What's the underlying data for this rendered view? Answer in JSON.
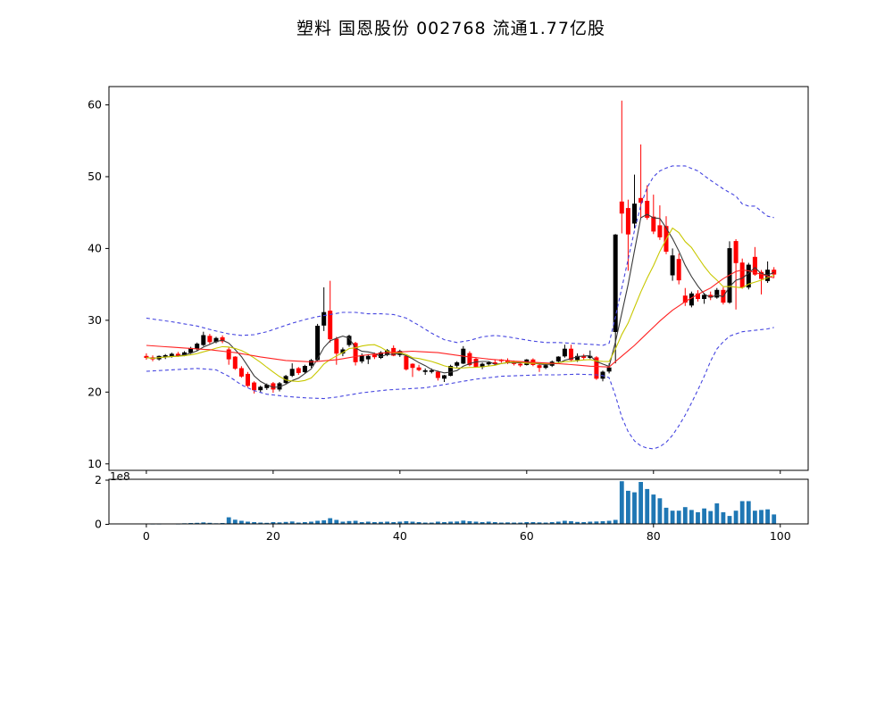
{
  "header": {
    "title": "塑料 国恩股份 002768 流通1.77亿股"
  },
  "chart_data": {
    "type": "candlestick",
    "title": "塑料 国恩股份 002768 流通1.77亿股",
    "panels": [
      "price",
      "volume"
    ],
    "x_ticks": [
      0,
      20,
      40,
      60,
      80,
      100
    ],
    "xlim": [
      -5.9,
      104.4
    ],
    "price_axis": {
      "ticks": [
        10,
        20,
        30,
        40,
        50,
        60
      ],
      "ylim": [
        9.1,
        62.55
      ]
    },
    "volume_axis": {
      "ticks": [
        0,
        2
      ],
      "offset_label": "1e8",
      "ylim_1e8": [
        0,
        2.0
      ]
    },
    "colors": {
      "up_candle": "#000000",
      "down_candle": "#ff0000",
      "ma_fast": "#3a3a3a",
      "ma_med": "#c8c800",
      "ma_slow": "#ff2222",
      "bollinger": "#4545e0",
      "volume_bar": "#1f77b4",
      "axis": "#000000",
      "background": "#ffffff"
    },
    "ohlc": [
      [
        25.0,
        25.4,
        24.5,
        24.8
      ],
      [
        24.8,
        25.1,
        24.3,
        24.6
      ],
      [
        24.6,
        25.1,
        24.4,
        25.0
      ],
      [
        24.9,
        25.3,
        24.6,
        25.1
      ],
      [
        25.0,
        25.5,
        24.8,
        25.3
      ],
      [
        25.3,
        25.6,
        24.9,
        25.1
      ],
      [
        25.1,
        25.7,
        25.0,
        25.5
      ],
      [
        25.5,
        26.3,
        25.3,
        26.1
      ],
      [
        26.0,
        26.9,
        25.8,
        26.7
      ],
      [
        26.6,
        28.4,
        26.4,
        27.9
      ],
      [
        27.8,
        28.1,
        26.7,
        27.0
      ],
      [
        27.0,
        27.7,
        26.8,
        27.5
      ],
      [
        27.6,
        27.9,
        26.8,
        27.1
      ],
      [
        25.9,
        26.2,
        23.8,
        24.6
      ],
      [
        24.9,
        25.0,
        23.1,
        23.3
      ],
      [
        23.3,
        23.6,
        22.0,
        22.2
      ],
      [
        22.5,
        22.8,
        20.7,
        20.9
      ],
      [
        21.3,
        21.5,
        19.8,
        20.3
      ],
      [
        20.3,
        20.9,
        19.9,
        20.7
      ],
      [
        20.6,
        21.2,
        20.3,
        21.0
      ],
      [
        21.2,
        21.4,
        19.9,
        20.4
      ],
      [
        20.4,
        21.4,
        20.1,
        21.2
      ],
      [
        21.3,
        22.4,
        21.1,
        22.2
      ],
      [
        22.3,
        24.0,
        22.1,
        23.2
      ],
      [
        23.3,
        23.5,
        22.4,
        22.7
      ],
      [
        22.8,
        23.8,
        22.6,
        23.6
      ],
      [
        23.7,
        24.6,
        23.4,
        24.4
      ],
      [
        24.5,
        29.5,
        24.3,
        29.2
      ],
      [
        29.3,
        34.6,
        28.5,
        31.1
      ],
      [
        31.3,
        35.5,
        26.9,
        27.4
      ],
      [
        27.4,
        27.7,
        23.8,
        25.4
      ],
      [
        25.4,
        26.2,
        25.0,
        25.9
      ],
      [
        26.6,
        28.0,
        26.3,
        27.8
      ],
      [
        26.8,
        27.0,
        23.7,
        24.2
      ],
      [
        24.3,
        25.4,
        24.0,
        25.1
      ],
      [
        24.6,
        25.3,
        23.9,
        25.0
      ],
      [
        25.2,
        25.5,
        24.6,
        24.9
      ],
      [
        24.8,
        25.7,
        24.6,
        25.5
      ],
      [
        25.2,
        26.0,
        25.0,
        25.8
      ],
      [
        26.1,
        26.5,
        25.0,
        25.1
      ],
      [
        25.2,
        25.9,
        24.9,
        25.7
      ],
      [
        25.0,
        25.2,
        23.0,
        23.2
      ],
      [
        23.9,
        24.0,
        22.1,
        23.4
      ],
      [
        23.4,
        23.8,
        22.9,
        23.1
      ],
      [
        22.9,
        23.3,
        22.4,
        23.0
      ],
      [
        23.0,
        23.3,
        22.6,
        23.0
      ],
      [
        22.8,
        23.0,
        21.6,
        22.0
      ],
      [
        21.9,
        22.4,
        21.4,
        22.3
      ],
      [
        22.3,
        23.8,
        22.2,
        23.6
      ],
      [
        23.7,
        24.3,
        23.4,
        24.1
      ],
      [
        24.0,
        26.4,
        23.9,
        26.0
      ],
      [
        25.4,
        25.7,
        23.6,
        23.8
      ],
      [
        24.6,
        24.8,
        23.4,
        23.5
      ],
      [
        23.5,
        24.1,
        23.2,
        23.9
      ],
      [
        23.9,
        24.3,
        23.6,
        24.1
      ],
      [
        24.1,
        24.5,
        23.8,
        24.0
      ],
      [
        24.5,
        24.6,
        24.1,
        24.4
      ],
      [
        24.4,
        24.7,
        23.9,
        24.1
      ],
      [
        24.1,
        24.4,
        23.7,
        24.0
      ],
      [
        23.9,
        24.2,
        23.5,
        23.8
      ],
      [
        23.8,
        24.6,
        23.7,
        24.5
      ],
      [
        24.5,
        24.7,
        23.6,
        23.8
      ],
      [
        23.7,
        23.9,
        22.8,
        23.4
      ],
      [
        23.4,
        23.9,
        23.2,
        23.7
      ],
      [
        23.7,
        24.4,
        23.5,
        24.2
      ],
      [
        24.3,
        25.0,
        24.1,
        24.9
      ],
      [
        25.0,
        26.6,
        24.8,
        26.0
      ],
      [
        26.0,
        26.6,
        24.3,
        24.5
      ],
      [
        24.5,
        25.4,
        24.2,
        25.0
      ],
      [
        25.0,
        25.3,
        24.5,
        24.8
      ],
      [
        24.8,
        25.8,
        24.6,
        25.0
      ],
      [
        24.8,
        25.0,
        21.7,
        21.9
      ],
      [
        21.9,
        23.0,
        21.5,
        22.8
      ],
      [
        22.9,
        24.0,
        22.6,
        23.4
      ],
      [
        28.4,
        42.0,
        24.0,
        41.9
      ],
      [
        46.5,
        60.6,
        42.1,
        44.9
      ],
      [
        45.6,
        46.8,
        36.9,
        42.0
      ],
      [
        43.5,
        50.3,
        42.8,
        46.2
      ],
      [
        47.0,
        54.5,
        44.3,
        46.4
      ],
      [
        46.6,
        48.8,
        44.0,
        44.3
      ],
      [
        44.4,
        47.5,
        42.0,
        42.4
      ],
      [
        43.2,
        46.0,
        41.2,
        41.6
      ],
      [
        43.1,
        44.5,
        39.2,
        39.6
      ],
      [
        36.3,
        40.0,
        35.5,
        39.0
      ],
      [
        38.5,
        39.3,
        35.0,
        35.6
      ],
      [
        33.4,
        34.5,
        32.0,
        32.5
      ],
      [
        32.1,
        34.0,
        31.8,
        33.7
      ],
      [
        33.7,
        34.2,
        32.6,
        33.0
      ],
      [
        33.0,
        33.8,
        32.3,
        33.5
      ],
      [
        33.5,
        34.0,
        32.8,
        33.2
      ],
      [
        33.2,
        34.5,
        33.0,
        34.2
      ],
      [
        34.2,
        34.6,
        32.2,
        32.5
      ],
      [
        32.5,
        41.0,
        32.3,
        40.0
      ],
      [
        41.0,
        41.3,
        31.5,
        38.0
      ],
      [
        38.0,
        38.6,
        34.4,
        34.6
      ],
      [
        34.6,
        38.0,
        34.3,
        37.7
      ],
      [
        38.8,
        40.2,
        36.2,
        36.4
      ],
      [
        36.7,
        37.0,
        33.6,
        35.8
      ],
      [
        35.5,
        38.2,
        35.2,
        37.0
      ],
      [
        37.0,
        37.4,
        35.9,
        36.4
      ]
    ],
    "volumes_1e8": [
      0.04,
      0.03,
      0.03,
      0.04,
      0.04,
      0.03,
      0.05,
      0.06,
      0.07,
      0.09,
      0.07,
      0.05,
      0.06,
      0.32,
      0.21,
      0.16,
      0.12,
      0.1,
      0.08,
      0.07,
      0.1,
      0.09,
      0.11,
      0.13,
      0.08,
      0.1,
      0.12,
      0.16,
      0.18,
      0.28,
      0.2,
      0.12,
      0.15,
      0.16,
      0.1,
      0.12,
      0.1,
      0.11,
      0.12,
      0.1,
      0.12,
      0.14,
      0.12,
      0.1,
      0.08,
      0.08,
      0.12,
      0.1,
      0.12,
      0.13,
      0.17,
      0.14,
      0.12,
      0.1,
      0.12,
      0.1,
      0.08,
      0.09,
      0.08,
      0.08,
      0.1,
      0.1,
      0.09,
      0.08,
      0.1,
      0.12,
      0.16,
      0.14,
      0.11,
      0.1,
      0.12,
      0.13,
      0.14,
      0.16,
      0.2,
      1.95,
      1.52,
      1.45,
      1.92,
      1.6,
      1.35,
      1.18,
      0.75,
      0.62,
      0.62,
      0.78,
      0.65,
      0.55,
      0.72,
      0.6,
      0.95,
      0.55,
      0.38,
      0.62,
      1.05,
      1.05,
      0.62,
      0.65,
      0.68,
      0.45
    ],
    "overlays": {
      "ma_fast_window": 5,
      "ma_med_window": 10,
      "ma_slow_keypoints": [
        [
          0,
          26.5
        ],
        [
          5,
          26.2
        ],
        [
          10,
          25.9
        ],
        [
          14,
          25.5
        ],
        [
          18,
          24.9
        ],
        [
          22,
          24.4
        ],
        [
          26,
          24.2
        ],
        [
          30,
          24.5
        ],
        [
          34,
          25.1
        ],
        [
          38,
          25.5
        ],
        [
          42,
          25.7
        ],
        [
          46,
          25.5
        ],
        [
          50,
          25.0
        ],
        [
          54,
          24.6
        ],
        [
          58,
          24.3
        ],
        [
          62,
          24.1
        ],
        [
          66,
          23.9
        ],
        [
          70,
          23.6
        ],
        [
          73,
          23.5
        ],
        [
          75,
          25.0
        ],
        [
          77,
          26.5
        ],
        [
          79,
          28.2
        ],
        [
          81,
          29.9
        ],
        [
          83,
          31.4
        ],
        [
          85,
          32.6
        ],
        [
          87,
          33.6
        ],
        [
          89,
          34.5
        ],
        [
          91,
          35.8
        ],
        [
          93,
          36.8
        ],
        [
          94,
          37.0
        ],
        [
          95,
          36.9
        ],
        [
          97,
          36.4
        ],
        [
          99,
          35.9
        ]
      ],
      "boll_upper_keypoints": [
        [
          0,
          30.3
        ],
        [
          4,
          29.8
        ],
        [
          8,
          29.2
        ],
        [
          11,
          28.5
        ],
        [
          13,
          28.1
        ],
        [
          15,
          27.9
        ],
        [
          17,
          28.0
        ],
        [
          19,
          28.4
        ],
        [
          21,
          29.0
        ],
        [
          23,
          29.6
        ],
        [
          25,
          30.1
        ],
        [
          27,
          30.5
        ],
        [
          29,
          30.8
        ],
        [
          31,
          31.1
        ],
        [
          33,
          31.1
        ],
        [
          35,
          30.9
        ],
        [
          37,
          30.9
        ],
        [
          39,
          30.8
        ],
        [
          41,
          30.3
        ],
        [
          43,
          29.3
        ],
        [
          45,
          28.2
        ],
        [
          47,
          27.3
        ],
        [
          49,
          26.9
        ],
        [
          51,
          27.2
        ],
        [
          53,
          27.7
        ],
        [
          55,
          27.9
        ],
        [
          57,
          27.7
        ],
        [
          59,
          27.4
        ],
        [
          61,
          27.1
        ],
        [
          63,
          26.9
        ],
        [
          65,
          26.9
        ],
        [
          67,
          26.8
        ],
        [
          69,
          26.7
        ],
        [
          71,
          26.6
        ],
        [
          72,
          26.5
        ],
        [
          73,
          26.8
        ],
        [
          74,
          30.5
        ],
        [
          75,
          34.5
        ],
        [
          76,
          38.5
        ],
        [
          77,
          42.5
        ],
        [
          78,
          46.0
        ],
        [
          79,
          48.5
        ],
        [
          80,
          50.0
        ],
        [
          81,
          50.8
        ],
        [
          82,
          51.2
        ],
        [
          83,
          51.5
        ],
        [
          85,
          51.5
        ],
        [
          87,
          50.8
        ],
        [
          89,
          49.5
        ],
        [
          91,
          48.3
        ],
        [
          93,
          47.3
        ],
        [
          94,
          46.2
        ],
        [
          95,
          45.9
        ],
        [
          96,
          45.9
        ],
        [
          97,
          45.2
        ],
        [
          98,
          44.5
        ],
        [
          99,
          44.3
        ]
      ],
      "boll_lower_keypoints": [
        [
          0,
          22.9
        ],
        [
          4,
          23.1
        ],
        [
          8,
          23.3
        ],
        [
          11,
          23.1
        ],
        [
          13,
          22.2
        ],
        [
          15,
          21.0
        ],
        [
          17,
          20.2
        ],
        [
          19,
          19.7
        ],
        [
          22,
          19.4
        ],
        [
          25,
          19.2
        ],
        [
          28,
          19.1
        ],
        [
          30,
          19.3
        ],
        [
          32,
          19.6
        ],
        [
          34,
          19.9
        ],
        [
          36,
          20.1
        ],
        [
          38,
          20.3
        ],
        [
          40,
          20.4
        ],
        [
          42,
          20.5
        ],
        [
          44,
          20.6
        ],
        [
          46,
          20.9
        ],
        [
          48,
          21.2
        ],
        [
          50,
          21.5
        ],
        [
          52,
          21.8
        ],
        [
          54,
          22.0
        ],
        [
          56,
          22.2
        ],
        [
          59,
          22.3
        ],
        [
          62,
          22.4
        ],
        [
          65,
          22.4
        ],
        [
          68,
          22.5
        ],
        [
          71,
          22.4
        ],
        [
          72,
          22.3
        ],
        [
          73,
          22.0
        ],
        [
          74,
          19.5
        ],
        [
          75,
          16.5
        ],
        [
          76,
          14.5
        ],
        [
          77,
          13.2
        ],
        [
          78,
          12.5
        ],
        [
          79,
          12.2
        ],
        [
          80,
          12.1
        ],
        [
          81,
          12.4
        ],
        [
          82,
          13.0
        ],
        [
          83,
          14.0
        ],
        [
          84,
          15.3
        ],
        [
          85,
          16.8
        ],
        [
          86,
          18.5
        ],
        [
          87,
          20.3
        ],
        [
          88,
          22.2
        ],
        [
          89,
          24.3
        ],
        [
          90,
          26.0
        ],
        [
          91,
          27.0
        ],
        [
          92,
          27.8
        ],
        [
          94,
          28.4
        ],
        [
          96,
          28.6
        ],
        [
          98,
          28.8
        ],
        [
          99,
          29.0
        ]
      ]
    }
  }
}
